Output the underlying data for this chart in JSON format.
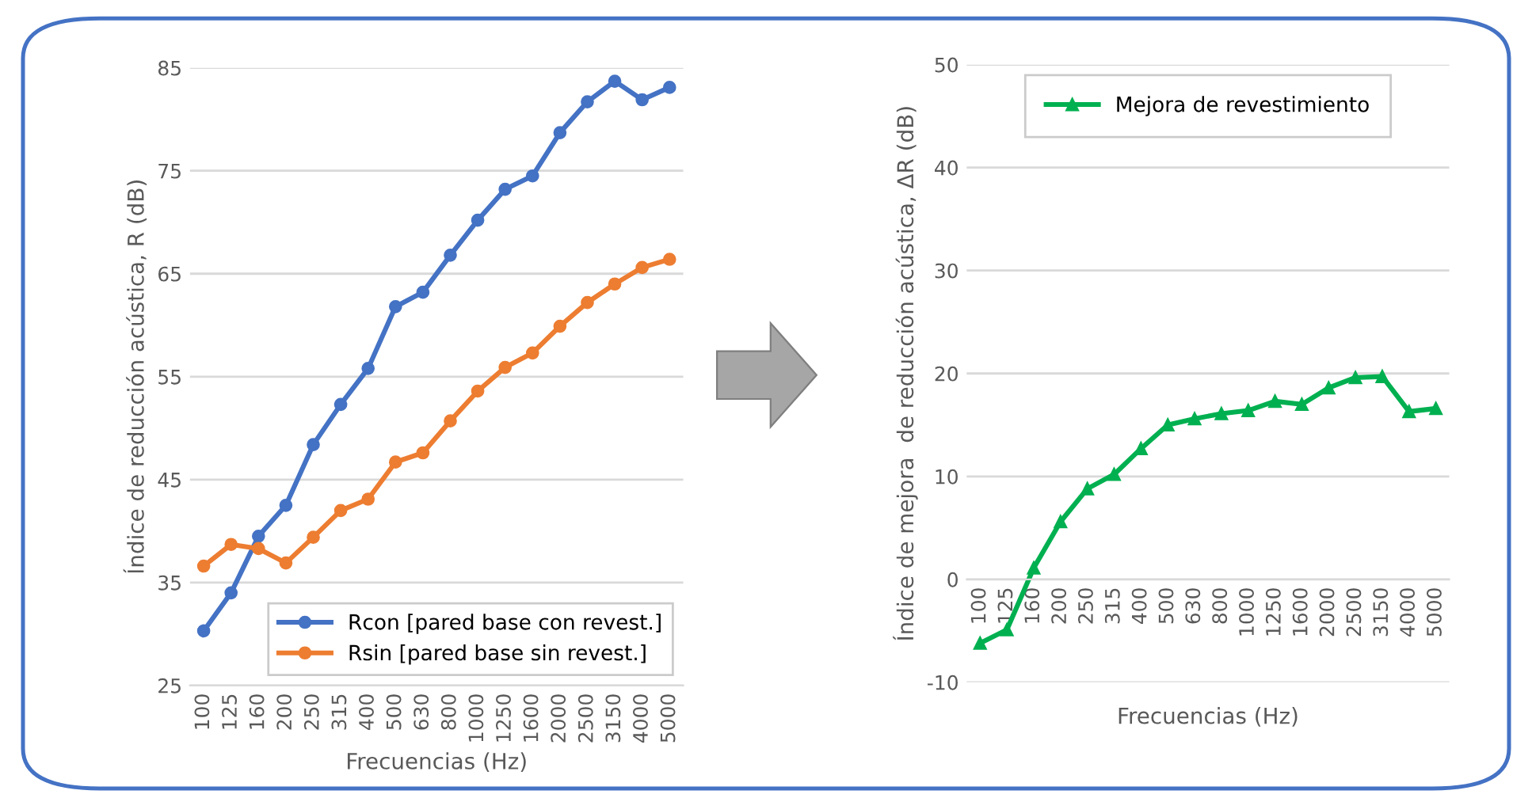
{
  "chart_data": [
    {
      "type": "line",
      "xlabel": "Frecuencias (Hz)",
      "ylabel": "Índice de reducción acústica, R (dB)",
      "categories": [
        "100",
        "125",
        "160",
        "200",
        "250",
        "315",
        "400",
        "500",
        "630",
        "800",
        "1000",
        "1250",
        "1600",
        "2000",
        "2500",
        "3150",
        "4000",
        "5000"
      ],
      "series": [
        {
          "name": "Rcon [pared base con revest.]",
          "color": "#4472c4",
          "values": [
            30.3,
            34.0,
            39.5,
            42.5,
            48.4,
            52.3,
            55.8,
            61.8,
            63.2,
            66.8,
            70.2,
            73.2,
            74.5,
            78.7,
            81.7,
            83.7,
            81.9,
            83.1
          ]
        },
        {
          "name": "Rsin [pared base sin revest.]",
          "color": "#ed7d31",
          "values": [
            36.6,
            38.7,
            38.3,
            36.9,
            39.4,
            42.0,
            43.1,
            46.7,
            47.6,
            50.7,
            53.6,
            55.9,
            57.3,
            59.9,
            62.2,
            64.0,
            65.6,
            66.4
          ]
        }
      ],
      "ylim": [
        25,
        85
      ],
      "yticks": [
        25,
        35,
        45,
        55,
        65,
        75,
        85
      ],
      "grid": "y",
      "legend": "bottom right",
      "marker": "circle",
      "line_style": "solid"
    },
    {
      "type": "line",
      "xlabel": "Frecuencias (Hz)",
      "ylabel": "Índice de mejora  de reducción acústica, ΔR (dB)",
      "categories": [
        "100",
        "125",
        "160",
        "200",
        "250",
        "315",
        "400",
        "500",
        "630",
        "800",
        "1000",
        "1250",
        "1600",
        "2000",
        "2500",
        "3150",
        "4000",
        "5000"
      ],
      "series": [
        {
          "name": "Mejora de revestimiento",
          "color": "#00b050",
          "values": [
            -6.2,
            -4.9,
            1.1,
            5.6,
            8.8,
            10.2,
            12.7,
            15.0,
            15.6,
            16.1,
            16.4,
            17.3,
            17.0,
            18.6,
            19.6,
            19.7,
            16.3,
            16.6
          ]
        }
      ],
      "ylim": [
        -10,
        50
      ],
      "yticks": [
        -10,
        0,
        10,
        20,
        30,
        40,
        50
      ],
      "grid": "y",
      "legend": "top",
      "marker": "triangle",
      "line_style": "solid"
    }
  ]
}
